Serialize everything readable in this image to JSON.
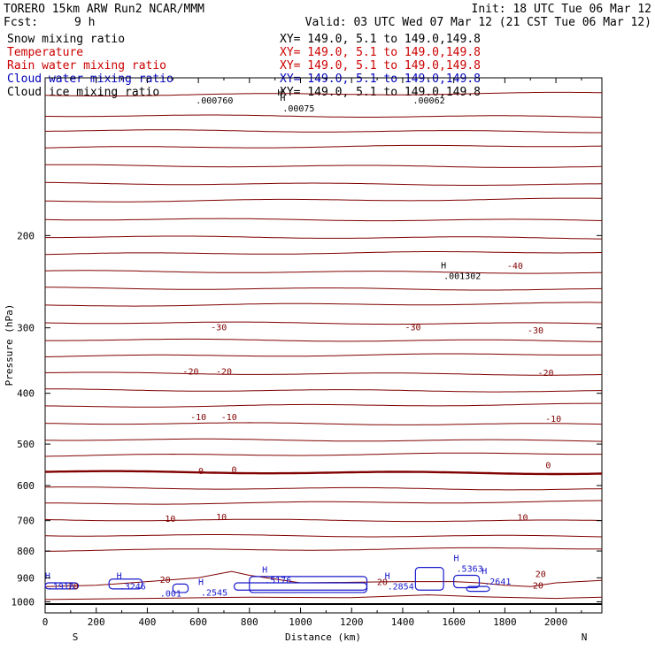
{
  "header": {
    "model": "TORERO   15km ARW   Run2    NCAR/MMM",
    "init": "Init: 18 UTC Tue 06 Mar 12",
    "fcst_label": "Fcst:",
    "fcst_value": "9 h",
    "valid": "Valid: 03 UTC Wed 07 Mar 12 (21 CST Tue 06 Mar 12)"
  },
  "legend": [
    {
      "name": "Snow mixing ratio",
      "xy": "XY= 149.0,  5.1 to 149.0,149.8",
      "color": "#000000"
    },
    {
      "name": "Temperature",
      "xy": "XY= 149.0,  5.1 to 149.0,149.8",
      "color": "#cc0000"
    },
    {
      "name": "Rain water mixing ratio",
      "xy": "XY= 149.0,  5.1 to 149.0,149.8",
      "color": "#cc0000"
    },
    {
      "name": "Cloud water mixing ratio",
      "xy": "XY= 149.0,  5.1 to 149.0,149.8",
      "color": "#0000bb"
    },
    {
      "name": "Cloud ice mixing ratio",
      "xy": "XY= 149.0,  5.1 to 149.0,149.8",
      "color": "#000000"
    }
  ],
  "colors": {
    "temperature": "#800000",
    "cloud_water": "#1a1acc",
    "snow": "#000000"
  },
  "chart_data": {
    "type": "line",
    "xlabel": "Distance (km)",
    "ylabel": "Pressure (hPa)",
    "xlim": [
      0,
      2180
    ],
    "ylim": [
      1050,
      100
    ],
    "y_scale": "log",
    "x_ticks": [
      0,
      200,
      400,
      600,
      800,
      1000,
      1200,
      1400,
      1600,
      1800,
      2000
    ],
    "y_ticks": [
      200,
      300,
      400,
      500,
      600,
      700,
      800,
      900,
      1000
    ],
    "x_tick_labels": [
      "0",
      "200",
      "400",
      "600",
      "800",
      "1000",
      "1200",
      "1400",
      "1600",
      "1800",
      "2000"
    ],
    "y_tick_labels": [
      "200",
      "300",
      "400",
      "500",
      "600",
      "700",
      "800",
      "900",
      "1000"
    ],
    "end_labels": {
      "left": "S",
      "right": "N"
    },
    "temperature_isotherms": [
      {
        "value": -40,
        "label": "-40",
        "label_positions": [
          [
            1840,
            229
          ]
        ]
      },
      {
        "value": -30,
        "label": "-30",
        "label_positions": [
          [
            680,
            300
          ],
          [
            1440,
            300
          ],
          [
            1920,
            304
          ]
        ]
      },
      {
        "value": -20,
        "label": "-20",
        "label_positions": [
          [
            570,
            364
          ],
          [
            700,
            364
          ],
          [
            1960,
            366
          ]
        ]
      },
      {
        "value": -10,
        "label": "-10",
        "label_positions": [
          [
            600,
            445
          ],
          [
            720,
            445
          ],
          [
            1990,
            448
          ]
        ]
      },
      {
        "value": 0,
        "label": "0",
        "label_positions": [
          [
            610,
            564
          ],
          [
            740,
            560
          ],
          [
            1970,
            550
          ]
        ]
      },
      {
        "value": 10,
        "label": "10",
        "label_positions": [
          [
            490,
            695
          ],
          [
            690,
            690
          ],
          [
            1870,
            692
          ]
        ]
      },
      {
        "value": 20,
        "label": "20",
        "label_positions": [
          [
            110,
            937
          ],
          [
            470,
            910
          ],
          [
            1320,
            918
          ],
          [
            1940,
            886
          ],
          [
            1930,
            933
          ]
        ]
      }
    ],
    "cloud_water_maxima": [
      {
        "marker": "H",
        "value": ".1916",
        "x": 10,
        "p": 940
      },
      {
        "marker": "H",
        "value": ".3246",
        "x": 290,
        "p": 940
      },
      {
        "marker": "",
        "value": ".001",
        "x": 450,
        "p": 970
      },
      {
        "marker": "H",
        "value": ".2545",
        "x": 610,
        "p": 965
      },
      {
        "marker": "H",
        "value": ".5176",
        "x": 860,
        "p": 915
      },
      {
        "marker": "H",
        "value": ".2854",
        "x": 1340,
        "p": 940
      },
      {
        "marker": "H",
        "value": ".5363",
        "x": 1610,
        "p": 870
      },
      {
        "marker": "H",
        "value": ".2641",
        "x": 1720,
        "p": 920
      }
    ],
    "snow_maxima": [
      {
        "marker": "",
        "value": ".000760",
        "x": 590,
        "p": 111
      },
      {
        "marker": "H",
        "value": ".00075",
        "x": 930,
        "p": 115
      },
      {
        "marker": "H",
        "value": ".001302",
        "x": 1560,
        "p": 240
      },
      {
        "marker": "",
        "value": ".00062",
        "x": 1440,
        "p": 111
      }
    ],
    "cloud_ice_maxima": [
      {
        "marker": "H",
        "value": "",
        "x": 920,
        "p": 108
      }
    ],
    "isotherm_labels_text": [
      "-40",
      "-30",
      "-20",
      "-10",
      "0",
      "10",
      "20"
    ]
  }
}
